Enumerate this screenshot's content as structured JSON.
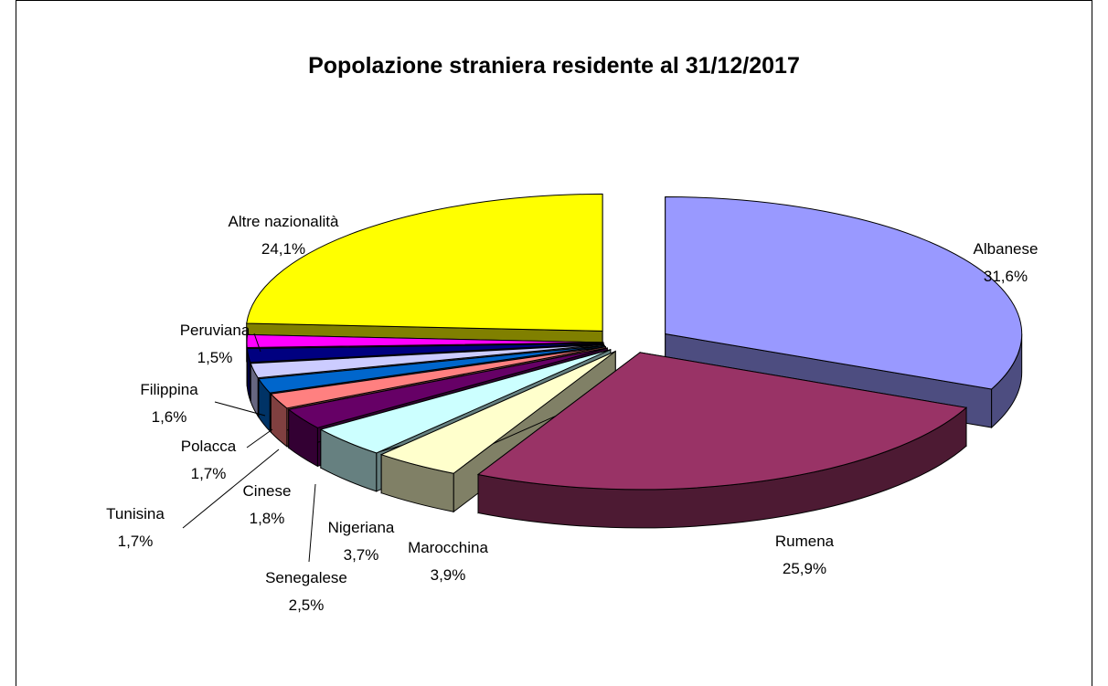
{
  "chart_data": {
    "type": "pie3d",
    "title": "Popolazione straniera residente al 31/12/2017",
    "categories": [
      "Albanese",
      "Rumena",
      "Marocchina",
      "Nigeriana",
      "Senegalese",
      "Cinese",
      "Tunisina",
      "Polacca",
      "Filippina",
      "Peruviana",
      "Altre nazionalità"
    ],
    "values": [
      31.6,
      25.9,
      3.9,
      3.7,
      2.5,
      1.8,
      1.7,
      1.7,
      1.6,
      1.5,
      24.1
    ],
    "value_labels": [
      "31,6%",
      "25,9%",
      "3,9%",
      "3,7%",
      "2,5%",
      "1,8%",
      "1,7%",
      "1,7%",
      "1,6%",
      "1,5%",
      "24,1%"
    ],
    "colors": [
      "#9999ff",
      "#993366",
      "#ffffcc",
      "#ccffff",
      "#660066",
      "#ff8080",
      "#0066cc",
      "#ccccff",
      "#000080",
      "#ff00ff",
      "#ffff00"
    ]
  }
}
